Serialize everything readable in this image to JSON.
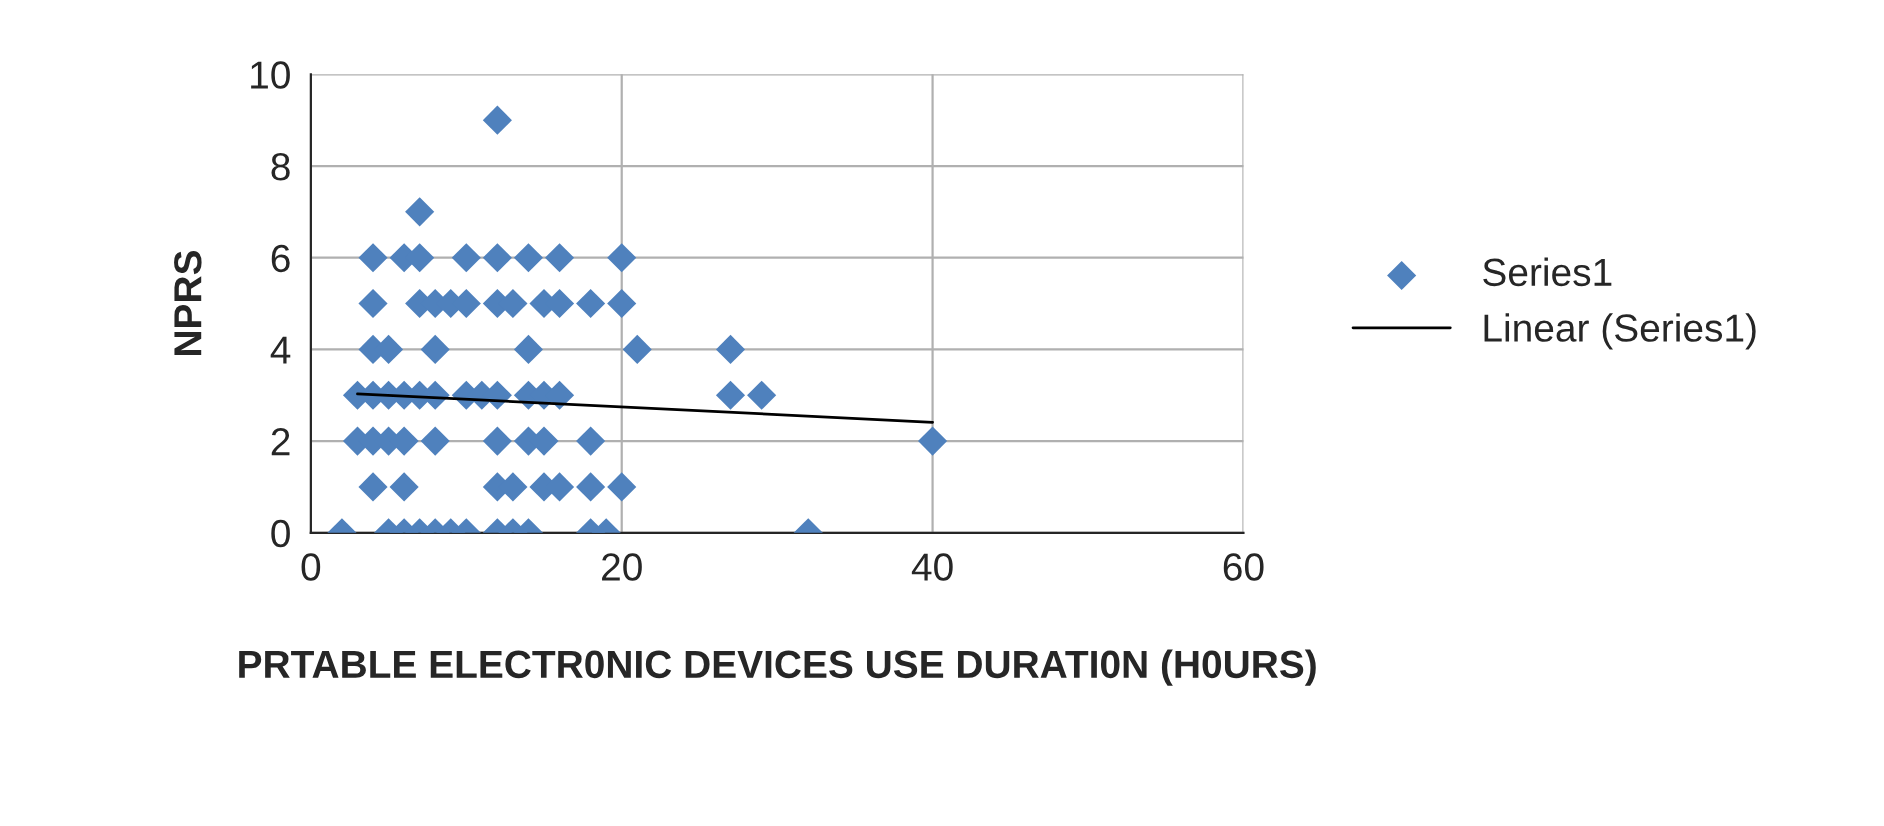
{
  "chart_data": {
    "type": "scatter",
    "xlabel": "PRTABLE ELECTR0NIC DEVICES USE DURATI0N (H0URS)",
    "ylabel": "NPRS",
    "series": [
      {
        "name": "Series1",
        "color": "#4f81bd",
        "marker": "diamond",
        "x": [
          12,
          7,
          4,
          6,
          7,
          10,
          12,
          14,
          16,
          20,
          4,
          7,
          8,
          9,
          10,
          12,
          13,
          15,
          16,
          18,
          20,
          4,
          5,
          8,
          14,
          21,
          27,
          3,
          4,
          5,
          6,
          7,
          8,
          10,
          11,
          12,
          14,
          15,
          16,
          27,
          29,
          3,
          4,
          5,
          6,
          8,
          12,
          14,
          15,
          18,
          40,
          4,
          6,
          12,
          13,
          15,
          16,
          18,
          20,
          2,
          5,
          6,
          7,
          8,
          9,
          10,
          12,
          13,
          14,
          18,
          19,
          32
        ],
        "values": [
          9,
          7,
          6,
          6,
          6,
          6,
          6,
          6,
          6,
          6,
          5,
          5,
          5,
          5,
          5,
          5,
          5,
          5,
          5,
          5,
          5,
          4,
          4,
          4,
          4,
          4,
          4,
          3,
          3,
          3,
          3,
          3,
          3,
          3,
          3,
          3,
          3,
          3,
          3,
          3,
          3,
          2,
          2,
          2,
          2,
          2,
          2,
          2,
          2,
          2,
          2,
          1,
          1,
          1,
          1,
          1,
          1,
          1,
          1,
          0,
          0,
          0,
          0,
          0,
          0,
          0,
          0,
          0,
          0,
          0,
          0,
          0
        ]
      },
      {
        "name": "Linear (Series1)",
        "color": "#000000",
        "type": "line",
        "marker": "none",
        "x": [
          3,
          40
        ],
        "values": [
          3.03,
          2.41
        ]
      }
    ],
    "xlim": [
      0,
      60
    ],
    "xticks": [
      0,
      20,
      40,
      60
    ],
    "ylim": [
      0,
      10
    ],
    "yticks": [
      0,
      2,
      4,
      6,
      8,
      10
    ],
    "grid": true,
    "legend": "right"
  }
}
